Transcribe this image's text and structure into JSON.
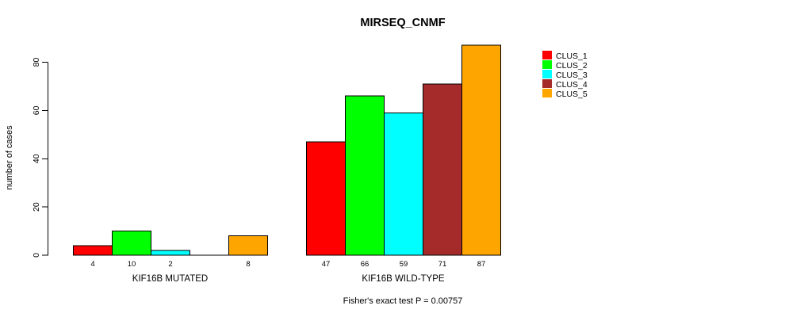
{
  "chart_data": {
    "type": "bar",
    "title": "MIRSEQ_CNMF",
    "ylabel": "number of cases",
    "xlabel": "",
    "ylim": [
      0,
      80
    ],
    "yticks": [
      0,
      20,
      40,
      60,
      80
    ],
    "grid": false,
    "legend_position": "top-right",
    "annotation": "Fisher's exact test P = 0.00757",
    "categories": [
      "KIF16B MUTATED",
      "KIF16B WILD-TYPE"
    ],
    "series": [
      {
        "name": "CLUS_1",
        "color": "#FF0000",
        "values": [
          4,
          47
        ],
        "labels": [
          "4",
          "47"
        ]
      },
      {
        "name": "CLUS_2",
        "color": "#00FF00",
        "values": [
          10,
          66
        ],
        "labels": [
          "10",
          "66"
        ]
      },
      {
        "name": "CLUS_3",
        "color": "#00FFFF",
        "values": [
          2,
          59
        ],
        "labels": [
          "2",
          "59"
        ]
      },
      {
        "name": "CLUS_4",
        "color": "#A52A2A",
        "values": [
          0,
          71
        ],
        "labels": [
          "",
          "71"
        ]
      },
      {
        "name": "CLUS_5",
        "color": "#FFA500",
        "values": [
          8,
          87
        ],
        "labels": [
          "8",
          "87"
        ]
      }
    ]
  }
}
